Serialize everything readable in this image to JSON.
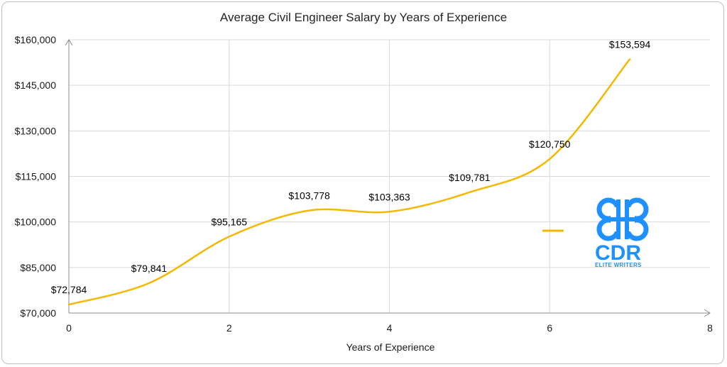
{
  "chart_data": {
    "type": "line",
    "title": "Average Civil Engineer Salary by Years of Experience",
    "xlabel": "Years of Experience",
    "ylabel": "",
    "xlim": [
      0,
      8
    ],
    "ylim": [
      70000,
      160000
    ],
    "x_ticks": [
      "0",
      "2",
      "4",
      "6",
      "8"
    ],
    "y_ticks": [
      "$70,000",
      "$85,000",
      "$100,000",
      "$115,000",
      "$130,000",
      "$145,000",
      "$160,000"
    ],
    "grid": true,
    "smooth": true,
    "series": [
      {
        "name": "",
        "color": "#f5b800",
        "x": [
          0,
          1,
          2,
          3,
          4,
          5,
          6,
          7
        ],
        "values": [
          72784,
          79841,
          95165,
          103778,
          103363,
          109781,
          120750,
          153594
        ],
        "labels": [
          "$72,784",
          "$79,841",
          "$95,165",
          "$103,778",
          "$103,363",
          "$109,781",
          "$120,750",
          "$153,594"
        ]
      }
    ],
    "legend": {
      "placement": "right",
      "entries": [
        ""
      ]
    }
  },
  "logo": {
    "text": "CDR",
    "subtext": "ELITE WRITERS",
    "color": "#1e90ff",
    "icon": "cdr-logo-icon"
  }
}
